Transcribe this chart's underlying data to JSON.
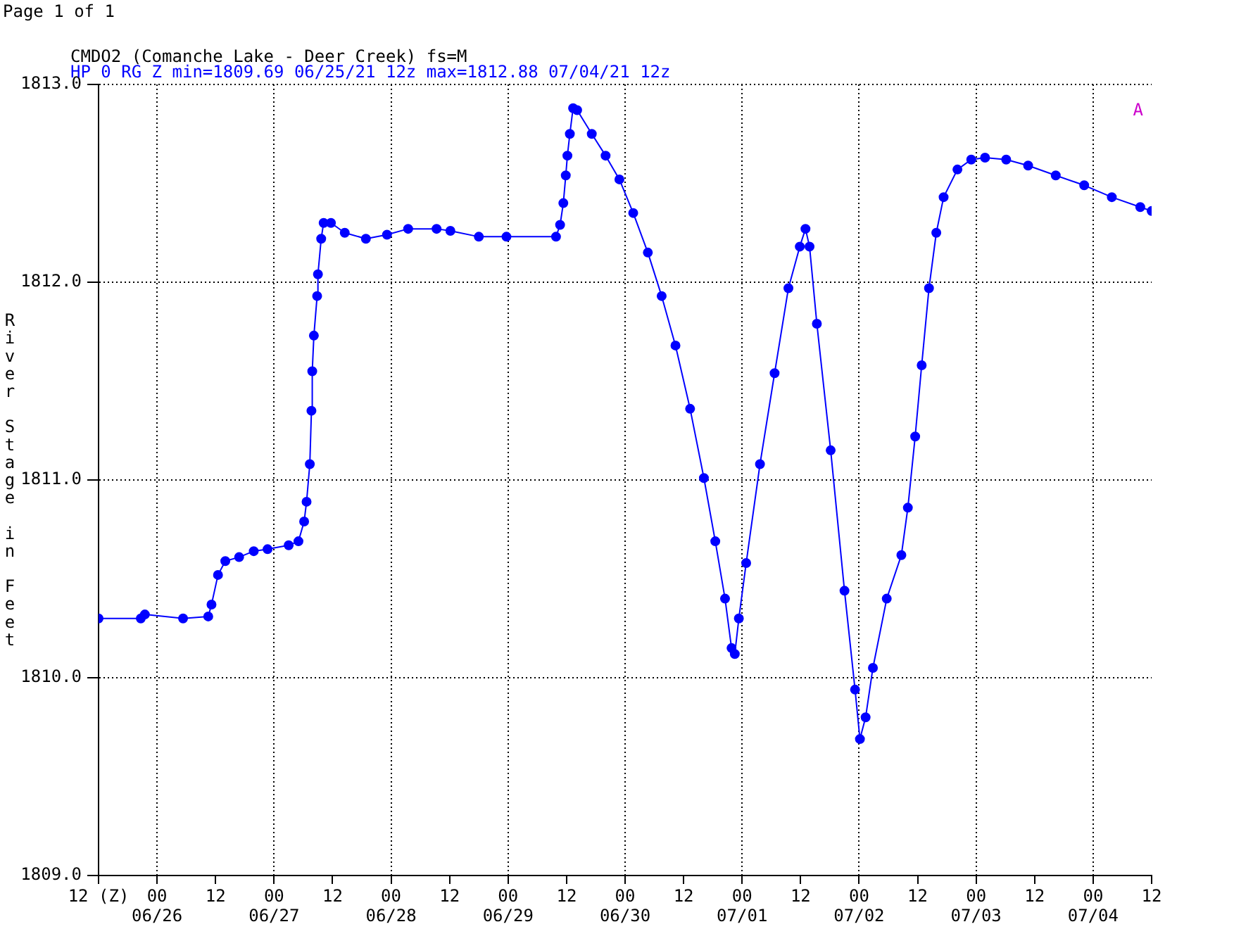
{
  "chart_data": {
    "type": "line",
    "title": "CMDO2 (Comanche Lake - Deer Creek) fs=M",
    "subtitle": "HP 0 RG Z min=1809.69 06/25/21 12z max=1812.88 07/04/21 12z",
    "ylabel": "River Stage in Feet",
    "annotations": [
      "Page 1 of 1",
      "A"
    ],
    "xlim": [
      "--06-25T12:00",
      "--07-04T12:00"
    ],
    "xticks": [
      {
        "value": "--06-25T12:00",
        "label": "12 (Z)"
      },
      {
        "value": "--06-26T00:00",
        "label": "00\n06/26"
      },
      {
        "value": "--06-26T12:00",
        "label": "12"
      },
      {
        "value": "--06-27T00:00",
        "label": "00\n06/27"
      },
      {
        "value": "--06-27T12:00",
        "label": "12"
      },
      {
        "value": "--06-28T00:00",
        "label": "00\n06/28"
      },
      {
        "value": "--06-28T12:00",
        "label": "12"
      },
      {
        "value": "--06-29T00:00",
        "label": "00\n06/29"
      },
      {
        "value": "--06-29T12:00",
        "label": "12"
      },
      {
        "value": "--06-30T00:00",
        "label": "00\n06/30"
      },
      {
        "value": "--06-30T12:00",
        "label": "12"
      },
      {
        "value": "--07-01T00:00",
        "label": "00\n07/01"
      },
      {
        "value": "--07-01T12:00",
        "label": "12"
      },
      {
        "value": "--07-02T00:00",
        "label": "00\n07/02"
      },
      {
        "value": "--07-02T12:00",
        "label": "12"
      },
      {
        "value": "--07-03T00:00",
        "label": "00\n07/03"
      },
      {
        "value": "--07-03T12:00",
        "label": "12"
      },
      {
        "value": "--07-04T00:00",
        "label": "00\n07/04"
      },
      {
        "value": "--07-04T12:00",
        "label": "12"
      }
    ],
    "ylim": [
      1809,
      1813
    ],
    "yticks": [
      {
        "value": 1809,
        "label": "1809.0"
      },
      {
        "value": 1810,
        "label": "1810.0"
      },
      {
        "value": 1811,
        "label": "1811.0"
      },
      {
        "value": 1812,
        "label": "1812.0"
      },
      {
        "value": 1813,
        "label": "1813.0"
      }
    ],
    "grid": true,
    "legend": false,
    "marker": "circle",
    "line_style": "solid",
    "series": [
      {
        "color": "#0000ff",
        "x": [
          "--06-25T12:00",
          "--06-25T20:40",
          "--06-25T21:30",
          "--06-26T05:20",
          "--06-26T10:30",
          "--06-26T11:10",
          "--06-26T12:30",
          "--06-26T14:00",
          "--06-26T16:50",
          "--06-26T19:50",
          "--06-26T22:40",
          "--06-27T03:00",
          "--06-27T05:00",
          "--06-27T06:10",
          "--06-27T06:40",
          "--06-27T07:20",
          "--06-27T07:40",
          "--06-27T07:50",
          "--06-27T08:10",
          "--06-27T08:50",
          "--06-27T09:00",
          "--06-27T09:40",
          "--06-27T10:10",
          "--06-27T11:40",
          "--06-27T14:30",
          "--06-27T18:50",
          "--06-27T23:10",
          "--06-28T03:30",
          "--06-28T09:20",
          "--06-28T12:10",
          "--06-28T18:00",
          "--06-28T23:40",
          "--06-29T09:50",
          "--06-29T10:40",
          "--06-29T11:20",
          "--06-29T11:50",
          "--06-29T12:10",
          "--06-29T12:40",
          "--06-29T13:20",
          "--06-29T14:10",
          "--06-29T17:10",
          "--06-29T20:00",
          "--06-29T22:50",
          "--06-30T01:40",
          "--06-30T04:40",
          "--06-30T07:30",
          "--06-30T10:20",
          "--06-30T13:20",
          "--06-30T16:10",
          "--06-30T18:30",
          "--06-30T20:30",
          "--06-30T21:50",
          "--06-30T22:30",
          "--06-30T23:20",
          "--07-01T00:50",
          "--07-01T03:40",
          "--07-01T06:40",
          "--07-01T09:30",
          "--07-01T11:50",
          "--07-01T13:00",
          "--07-01T13:50",
          "--07-01T15:20",
          "--07-01T18:10",
          "--07-01T21:00",
          "--07-01T23:10",
          "--07-02T00:10",
          "--07-02T01:20",
          "--07-02T02:50",
          "--07-02T05:40",
          "--07-02T08:40",
          "--07-02T10:00",
          "--07-02T11:30",
          "--07-02T12:50",
          "--07-02T14:20",
          "--07-02T15:50",
          "--07-02T17:20",
          "--07-02T20:10",
          "--07-02T23:00",
          "--07-03T01:50",
          "--07-03T06:10",
          "--07-03T10:40",
          "--07-03T16:20",
          "--07-03T22:10",
          "--07-04T03:50",
          "--07-04T09:40",
          "--07-04T12:00"
        ],
        "values": [
          1810.3,
          1810.3,
          1810.32,
          1810.3,
          1810.31,
          1810.37,
          1810.52,
          1810.59,
          1810.61,
          1810.64,
          1810.65,
          1810.67,
          1810.69,
          1810.79,
          1810.89,
          1811.08,
          1811.35,
          1811.55,
          1811.73,
          1811.93,
          1812.04,
          1812.22,
          1812.3,
          1812.3,
          1812.25,
          1812.22,
          1812.24,
          1812.27,
          1812.27,
          1812.26,
          1812.23,
          1812.23,
          1812.23,
          1812.29,
          1812.4,
          1812.54,
          1812.64,
          1812.75,
          1812.88,
          1812.87,
          1812.75,
          1812.64,
          1812.52,
          1812.35,
          1812.15,
          1811.93,
          1811.68,
          1811.36,
          1811.01,
          1810.69,
          1810.4,
          1810.15,
          1810.12,
          1810.3,
          1810.58,
          1811.08,
          1811.54,
          1811.97,
          1812.18,
          1812.27,
          1812.18,
          1811.79,
          1811.15,
          1810.44,
          1809.94,
          1809.69,
          1809.8,
          1810.05,
          1810.4,
          1810.62,
          1810.86,
          1811.22,
          1811.58,
          1811.97,
          1812.25,
          1812.43,
          1812.57,
          1812.62,
          1812.63,
          1812.62,
          1812.59,
          1812.54,
          1812.49,
          1812.43,
          1812.38,
          1812.36
        ]
      }
    ]
  }
}
